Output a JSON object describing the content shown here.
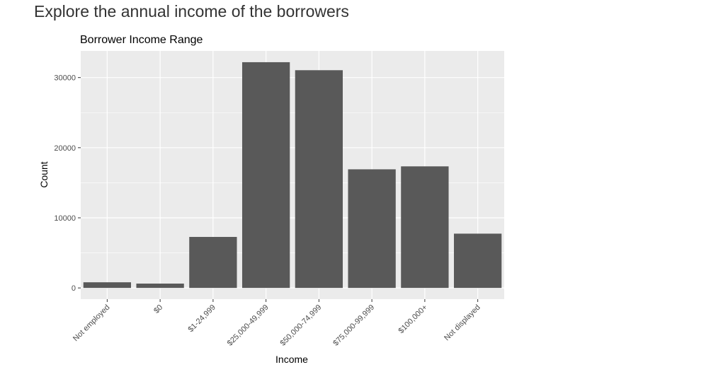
{
  "page": {
    "heading": "Explore the annual income of the borrowers"
  },
  "chart_data": {
    "type": "bar",
    "title": "Borrower Income Range",
    "xlabel": "Income",
    "ylabel": "Count",
    "categories": [
      "Not employed",
      "$0",
      "$1-24,999",
      "$25,000-49,999",
      "$50,000-74,999",
      "$75,000-99,999",
      "$100,000+",
      "Not displayed"
    ],
    "values": [
      806,
      621,
      7274,
      32192,
      31050,
      16916,
      17337,
      7741
    ],
    "ylim": [
      -1600,
      33800
    ],
    "yticks": [
      0,
      10000,
      20000,
      30000
    ],
    "ytick_labels": [
      "0",
      "10000",
      "20000",
      "30000"
    ],
    "grid": true,
    "legend": "none",
    "colors": {
      "panel": "#EBEBEB",
      "bar": "#595959",
      "grid": "#FFFFFF",
      "text": "#4D4D4D",
      "title": "#000000"
    }
  }
}
